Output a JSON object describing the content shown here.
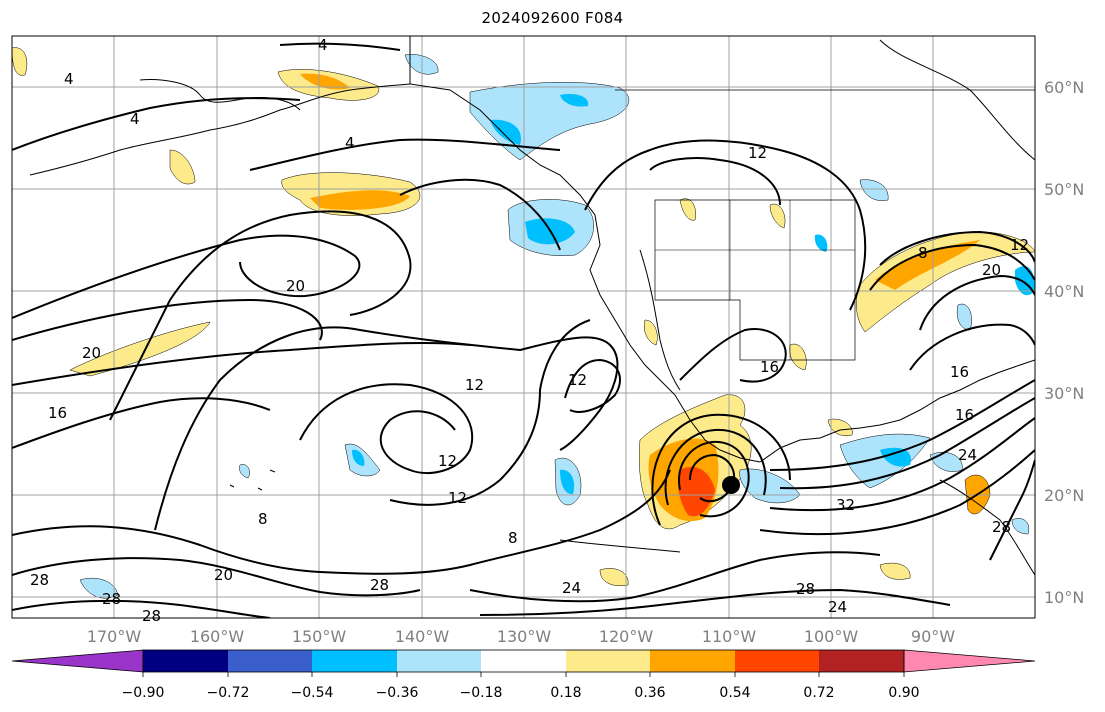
{
  "title": "2024092600 F084",
  "map": {
    "lon_range": [
      -180,
      -80
    ],
    "lat_range": [
      8,
      65
    ],
    "lon_ticks": [
      "170°W",
      "160°W",
      "150°W",
      "140°W",
      "130°W",
      "120°W",
      "110°W",
      "100°W",
      "90°W"
    ],
    "lat_ticks": [
      "60°N",
      "50°N",
      "40°N",
      "30°N",
      "20°N",
      "10°N"
    ],
    "storm_center": {
      "lon": -110.2,
      "lat": 21.0
    },
    "contour_labels": [
      "4",
      "4",
      "4",
      "4",
      "12",
      "12",
      "12",
      "12",
      "12",
      "20",
      "20",
      "20",
      "16",
      "16",
      "16",
      "16",
      "8",
      "8",
      "8",
      "24",
      "24",
      "24",
      "28",
      "28",
      "28",
      "28",
      "28",
      "28",
      "32",
      "20"
    ]
  },
  "colorbar": {
    "ticks": [
      "−0.90",
      "−0.72",
      "−0.54",
      "−0.36",
      "−0.18",
      "0.18",
      "0.36",
      "0.54",
      "0.72",
      "0.90"
    ],
    "colors": [
      "#9a35c9",
      "#000080",
      "#3a5fcd",
      "#00bfff",
      "#ade3fb",
      "#ffffff",
      "#fdea8a",
      "#ffa500",
      "#ff4500",
      "#b22222",
      "#ff88b0"
    ]
  }
}
